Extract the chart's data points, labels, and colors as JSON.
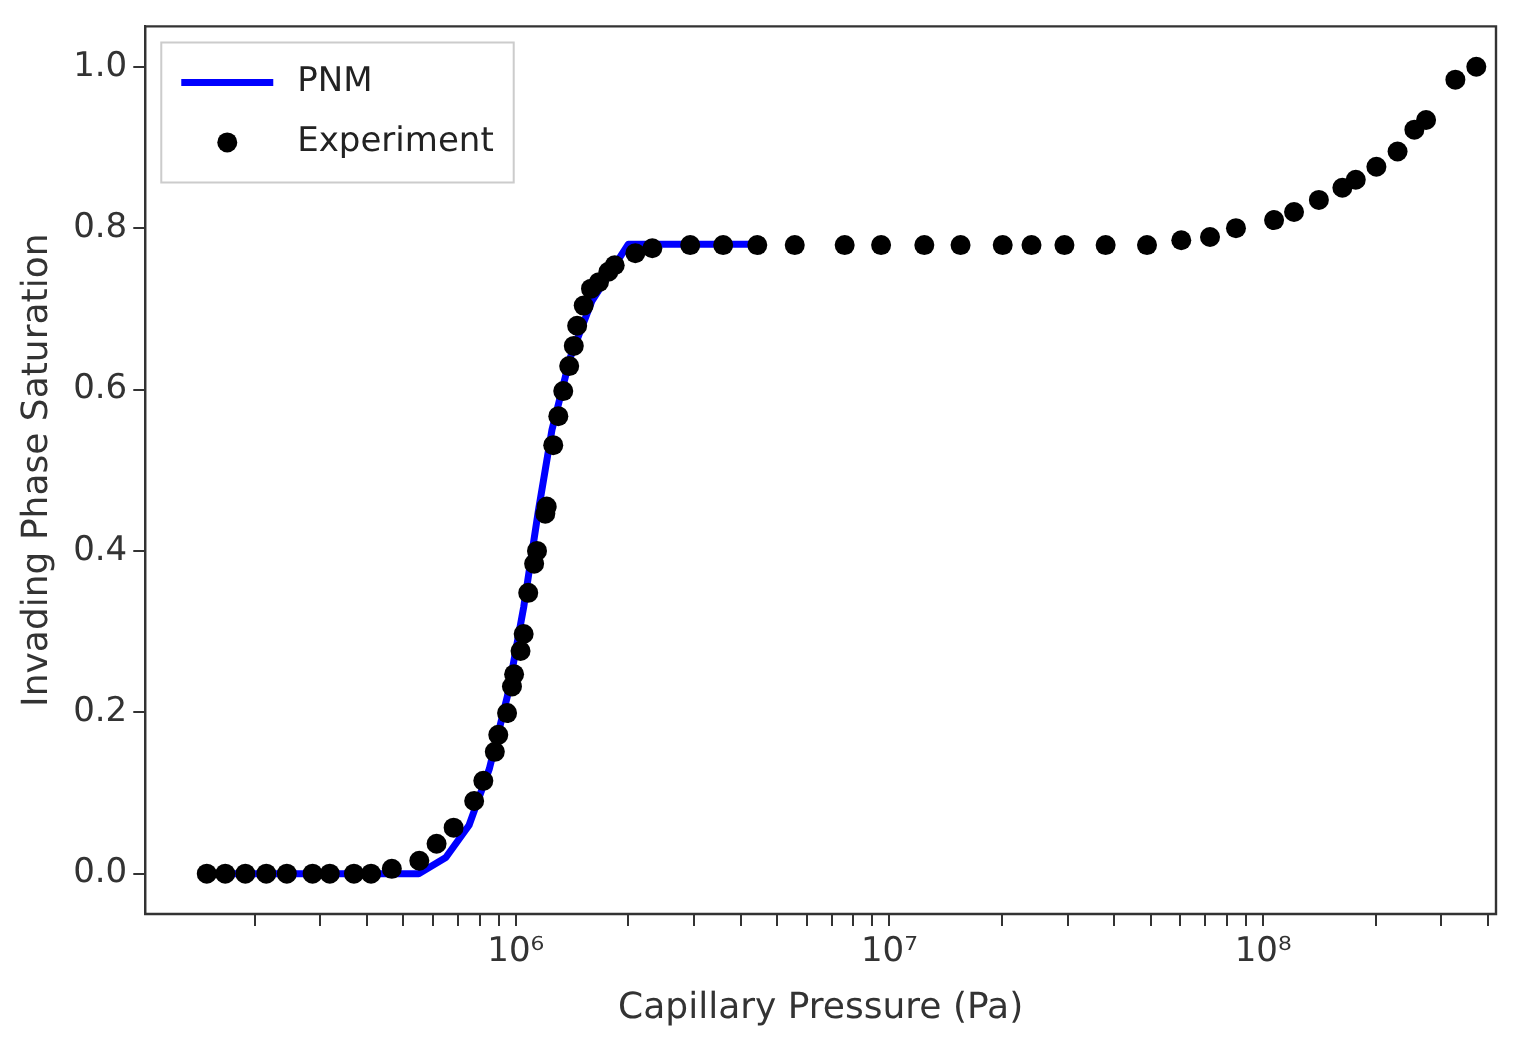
{
  "chart_data": {
    "type": "scatter",
    "xlabel": "Capillary Pressure (Pa)",
    "ylabel": "Invading Phase Saturation",
    "log": "x",
    "grid": false,
    "legend": "top left",
    "xlim": [
      102000,
      420000000
    ],
    "ylim": [
      -0.05,
      1.05
    ],
    "xticks": [
      {
        "value": 200000,
        "label": null
      },
      {
        "value": 300000,
        "label": null
      },
      {
        "value": 400000,
        "label": null
      },
      {
        "value": 500000,
        "label": null
      },
      {
        "value": 600000,
        "label": null
      },
      {
        "value": 700000,
        "label": null
      },
      {
        "value": 800000,
        "label": null
      },
      {
        "value": 900000,
        "label": null
      },
      {
        "value": 1000000,
        "label": "10⁶"
      },
      {
        "value": 2000000,
        "label": null
      },
      {
        "value": 3000000,
        "label": null
      },
      {
        "value": 4000000,
        "label": null
      },
      {
        "value": 5000000,
        "label": null
      },
      {
        "value": 6000000,
        "label": null
      },
      {
        "value": 7000000,
        "label": null
      },
      {
        "value": 8000000,
        "label": null
      },
      {
        "value": 9000000,
        "label": null
      },
      {
        "value": 10000000,
        "label": "10⁷"
      },
      {
        "value": 20000000,
        "label": null
      },
      {
        "value": 30000000,
        "label": null
      },
      {
        "value": 40000000,
        "label": null
      },
      {
        "value": 50000000,
        "label": null
      },
      {
        "value": 60000000,
        "label": null
      },
      {
        "value": 70000000,
        "label": null
      },
      {
        "value": 80000000,
        "label": null
      },
      {
        "value": 90000000,
        "label": null
      },
      {
        "value": 100000000,
        "label": "10⁸"
      },
      {
        "value": 200000000,
        "label": null
      },
      {
        "value": 300000000,
        "label": null
      },
      {
        "value": 400000000,
        "label": null
      }
    ],
    "yticks": [
      {
        "value": 0,
        "label": "0.0"
      },
      {
        "value": 0.2,
        "label": "0.2"
      },
      {
        "value": 0.4,
        "label": "0.4"
      },
      {
        "value": 0.6,
        "label": "0.6"
      },
      {
        "value": 0.8,
        "label": "0.8"
      },
      {
        "value": 1,
        "label": "1.0"
      }
    ],
    "series": [
      {
        "name": "PNM",
        "type": "line",
        "color": "#0000ff",
        "line_style": "solid",
        "marker": "none",
        "x": [
          150000,
          550000,
          650000,
          750000,
          850000,
          950000,
          1050000,
          1150000,
          1250000,
          1400000,
          1600000,
          2000000,
          4200000
        ],
        "values": [
          0,
          0,
          0.02,
          0.06,
          0.13,
          0.22,
          0.33,
          0.45,
          0.55,
          0.64,
          0.71,
          0.78,
          0.78
        ]
      },
      {
        "name": "Experiment",
        "color": "#000000",
        "marker": "circle",
        "x": [
          149000,
          167000,
          189000,
          215000,
          244000,
          286000,
          318000,
          369000,
          410000,
          466000,
          552000,
          614000,
          682000,
          774000,
          819000,
          879000,
          898000,
          948000,
          977000,
          990000,
          1030000,
          1050000,
          1080000,
          1120000,
          1140000,
          1200000,
          1210000,
          1260000,
          1300000,
          1340000,
          1390000,
          1430000,
          1460000,
          1520000,
          1590000,
          1670000,
          1770000,
          1840000,
          2090000,
          2320000,
          2930000,
          3590000,
          4430000,
          5580000,
          7590000,
          9500000,
          12400000,
          15500000,
          20100000,
          24000000,
          29400000,
          37900000,
          48900000,
          60400000,
          72100000,
          84600000,
          107000000,
          121000000,
          141000000,
          163000000,
          177000000,
          201000000,
          229000000,
          254000000,
          273000000,
          327000000,
          372000000
        ],
        "values": [
          0,
          0,
          0,
          0,
          0,
          0,
          0,
          0,
          0,
          0.006,
          0.016,
          0.037,
          0.057,
          0.09,
          0.115,
          0.151,
          0.172,
          0.199,
          0.232,
          0.247,
          0.276,
          0.297,
          0.348,
          0.384,
          0.4,
          0.446,
          0.455,
          0.531,
          0.567,
          0.598,
          0.629,
          0.654,
          0.679,
          0.704,
          0.725,
          0.733,
          0.746,
          0.754,
          0.769,
          0.775,
          0.779,
          0.779,
          0.779,
          0.779,
          0.779,
          0.779,
          0.779,
          0.779,
          0.779,
          0.779,
          0.779,
          0.779,
          0.779,
          0.785,
          0.789,
          0.8,
          0.81,
          0.82,
          0.835,
          0.85,
          0.86,
          0.876,
          0.895,
          0.922,
          0.934,
          0.984,
          1
        ]
      }
    ]
  }
}
